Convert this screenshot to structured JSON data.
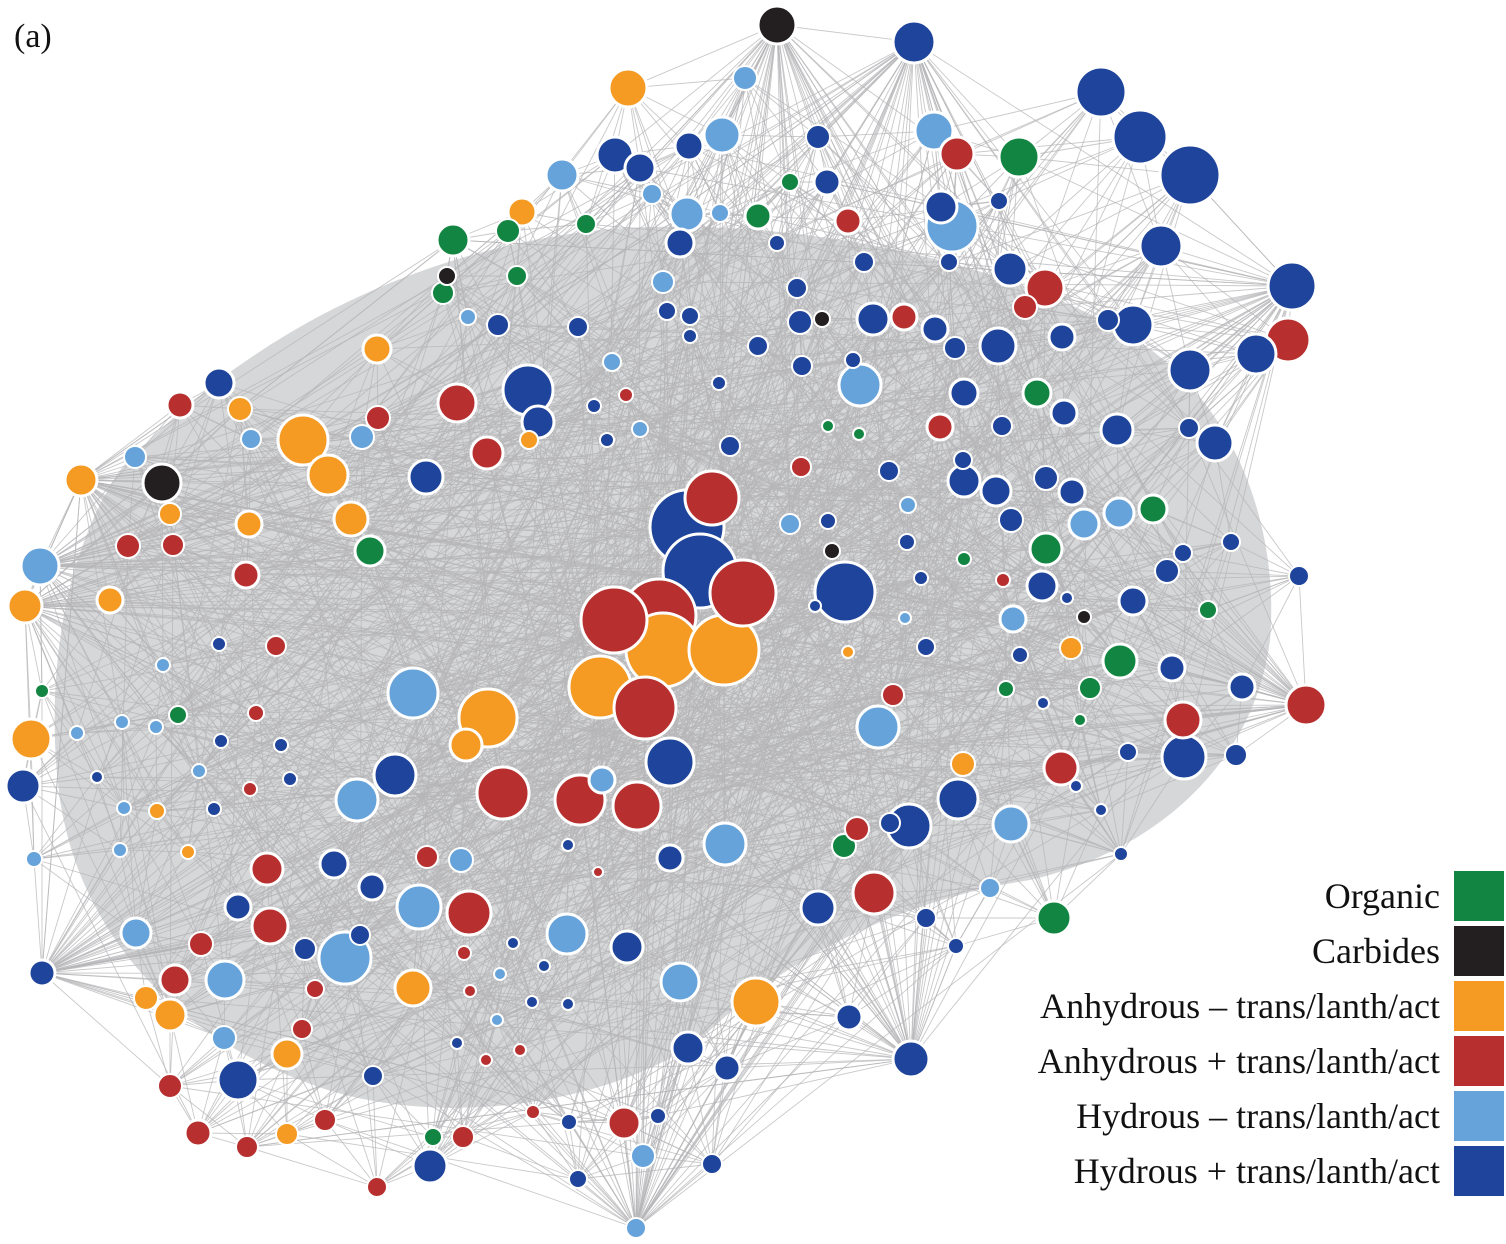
{
  "panel_label": "(a)",
  "legend": [
    {
      "key": "organic",
      "label": "Organic",
      "color": "#138542"
    },
    {
      "key": "carbides",
      "label": "Carbides",
      "color": "#231f20"
    },
    {
      "key": "anh_minus",
      "label": "Anhydrous – trans/lanth/act",
      "color": "#f59a23"
    },
    {
      "key": "anh_plus",
      "label": "Anhydrous + trans/lanth/act",
      "color": "#b7302f"
    },
    {
      "key": "hyd_minus",
      "label": "Hydrous – trans/lanth/act",
      "color": "#66a3da"
    },
    {
      "key": "hyd_plus",
      "label": "Hydrous + trans/lanth/act",
      "color": "#1f449b"
    }
  ],
  "colors": {
    "edges": "#b5b6b8",
    "node_stroke": "#ffffff",
    "background": "#ffffff"
  }
}
